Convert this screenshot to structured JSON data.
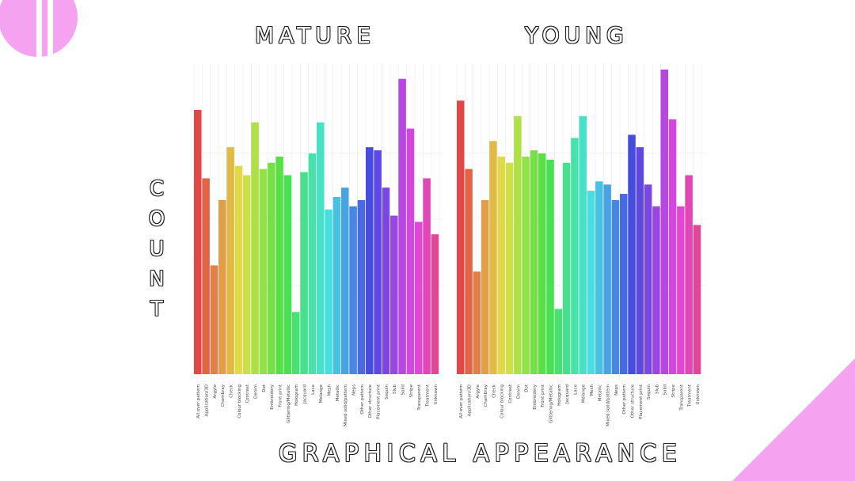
{
  "panels": {
    "mature_title": "MATURE",
    "young_title": "YOUNG"
  },
  "axes": {
    "ylabel_letters": [
      "C",
      "O",
      "U",
      "N",
      "T"
    ],
    "xlabel": "GRAPHICAL APPEARANCE"
  },
  "colors": {
    "decor_pink": "#f5a3f0",
    "grid": "#ebebeb"
  },
  "chart_data": [
    {
      "type": "bar",
      "title": "MATURE",
      "xlabel": "GRAPHICAL APPEARANCE",
      "ylabel": "COUNT",
      "ylim": [
        0,
        100
      ],
      "grid": true,
      "categories": [
        "All over pattern",
        "Application/3D",
        "Argyle",
        "Chambray",
        "Check",
        "Colour blocking",
        "Contrast",
        "Denim",
        "Dot",
        "Embroidery",
        "Front print",
        "Glittering/Metallic",
        "Hologram",
        "Jacquard",
        "Lace",
        "Melange",
        "Mesh",
        "Metallic",
        "Mixed solid/pattern",
        "Neps",
        "Other pattern",
        "Other structure",
        "Placement print",
        "Sequin",
        "Slub",
        "Solid",
        "Stripe",
        "Transparent",
        "Treatment",
        "Unknown"
      ],
      "values": [
        85,
        63,
        35,
        56,
        73,
        67,
        64,
        81,
        66,
        68,
        70,
        64,
        20,
        65,
        71,
        81,
        53,
        57,
        60,
        54,
        56,
        73,
        72,
        60,
        51,
        95,
        79,
        49,
        63,
        45
      ]
    },
    {
      "type": "bar",
      "title": "YOUNG",
      "xlabel": "GRAPHICAL APPEARANCE",
      "ylabel": "COUNT",
      "ylim": [
        0,
        100
      ],
      "grid": true,
      "categories": [
        "All over pattern",
        "Application/3D",
        "Argyle",
        "Chambray",
        "Check",
        "Colour blocking",
        "Contrast",
        "Denim",
        "Dot",
        "Embroidery",
        "Front print",
        "Glittering/Metallic",
        "Hologram",
        "Jacquard",
        "Lace",
        "Melange",
        "Mesh",
        "Metallic",
        "Mixed solid/pattern",
        "Neps",
        "Other pattern",
        "Other structure",
        "Placement print",
        "Sequin",
        "Slub",
        "Solid",
        "Stripe",
        "Transparent",
        "Treatment",
        "Unknown"
      ],
      "values": [
        88,
        66,
        33,
        56,
        75,
        70,
        68,
        83,
        70,
        72,
        71,
        69,
        21,
        68,
        76,
        83,
        59,
        62,
        61,
        56,
        58,
        77,
        73,
        61,
        54,
        98,
        82,
        54,
        64,
        48
      ]
    }
  ]
}
